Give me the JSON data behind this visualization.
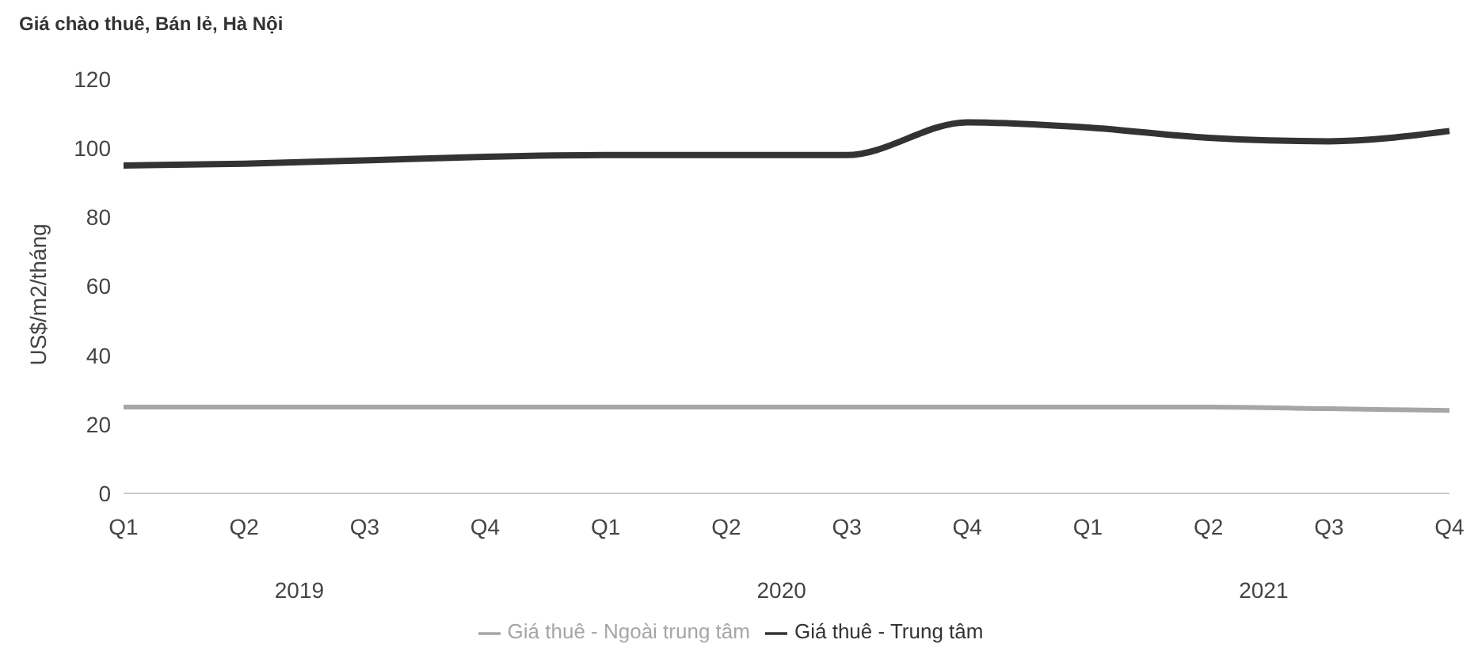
{
  "chart_data": {
    "type": "line",
    "title": "Giá chào thuê, Bán lẻ, Hà Nội",
    "ylabel": "US$/m2/tháng",
    "categories": [
      "Q1",
      "Q2",
      "Q3",
      "Q4",
      "Q1",
      "Q2",
      "Q3",
      "Q4",
      "Q1",
      "Q2",
      "Q3",
      "Q4"
    ],
    "annotations": [
      "2019",
      "2020",
      "2021"
    ],
    "series": [
      {
        "name": "Giá thuê - Trung tâm",
        "color": "#333333",
        "values": [
          95,
          95.5,
          96.5,
          97.5,
          98,
          98,
          98,
          107.5,
          106,
          103,
          102,
          105
        ]
      },
      {
        "name": "Giá thuê - Ngoài trung tâm",
        "color": "#a6a6a6",
        "values": [
          25,
          25,
          25,
          25,
          25,
          25,
          25,
          25,
          25,
          25,
          24.5,
          24
        ]
      }
    ],
    "ylim": [
      0,
      120
    ],
    "yticks": [
      0,
      20,
      40,
      60,
      80,
      100,
      120
    ],
    "grid": false,
    "legend": "bottom",
    "marker": "none",
    "line_style": "solid"
  }
}
